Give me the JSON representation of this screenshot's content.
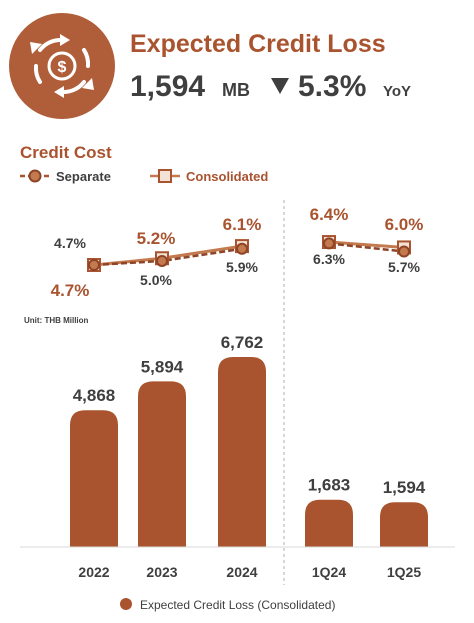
{
  "header": {
    "title": "Expected Credit Loss",
    "value": "1,594",
    "unit": "MB",
    "change": "5.3%",
    "change_suffix": "YoY",
    "change_direction": "down",
    "icon": "money-cycle-icon"
  },
  "colors": {
    "primary": "#a9532f",
    "light": "#c47a4f",
    "text_dark": "#3f3f3f",
    "separator": "#bfbfbf"
  },
  "chart_data": [
    {
      "type": "line",
      "title": "Credit Cost",
      "categories": [
        "2022",
        "2023",
        "2024",
        "1Q24",
        "1Q25"
      ],
      "series": [
        {
          "name": "Separate",
          "values": [
            4.7,
            5.0,
            5.9,
            6.3,
            5.7
          ],
          "labels": [
            "4.7%",
            "5.0%",
            "5.9%",
            "6.3%",
            "5.7%"
          ],
          "style": "dashed",
          "marker": "circle"
        },
        {
          "name": "Consolidated",
          "values": [
            4.7,
            5.2,
            6.1,
            6.4,
            6.0
          ],
          "labels": [
            "4.7%",
            "5.2%",
            "6.1%",
            "6.4%",
            "6.0%"
          ],
          "style": "solid",
          "marker": "square"
        }
      ],
      "groups": [
        [
          "2022",
          "2023",
          "2024"
        ],
        [
          "1Q24",
          "1Q25"
        ]
      ],
      "legend": "top-left",
      "unit": "%"
    },
    {
      "type": "bar",
      "unit_note": "Unit: THB Million",
      "categories": [
        "2022",
        "2023",
        "2024",
        "1Q24",
        "1Q25"
      ],
      "series": [
        {
          "name": "Expected Credit Loss (Consolidated)",
          "values": [
            4868,
            5894,
            6762,
            1683,
            1594
          ],
          "labels": [
            "4,868",
            "5,894",
            "6,762",
            "1,683",
            "1,594"
          ]
        }
      ],
      "legend": "bottom",
      "ylim": [
        0,
        7000
      ]
    }
  ]
}
